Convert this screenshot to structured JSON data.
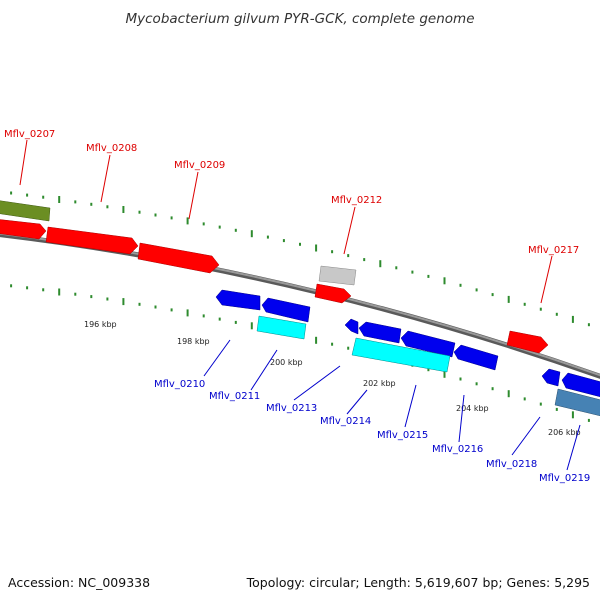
{
  "title": "Mycobacterium gilvum PYR-GCK, complete genome",
  "footer": {
    "accession": "Accession: NC_009338",
    "summary": "Topology: circular; Length: 5,619,607 bp; Genes: 5,295"
  },
  "colors": {
    "backbone": "#808080",
    "tick": "#2e8b2e",
    "red": "#ff0000",
    "blue": "#0000ee",
    "cyan": "#00ffff",
    "olive": "#6b8e23",
    "grey": "#c0c0c0",
    "steel": "#4682b4",
    "label_red": "#dd0000",
    "label_blue": "#0000cc"
  },
  "scale_labels": [
    "196 kbp",
    "198 kbp",
    "200 kbp",
    "202 kbp",
    "204 kbp",
    "206 kbp"
  ],
  "gene_labels": {
    "top": [
      "Mflv_0207",
      "Mflv_0208",
      "Mflv_0209",
      "Mflv_0212",
      "Mflv_0217"
    ],
    "bottom": [
      "Mflv_0210",
      "Mflv_0211",
      "Mflv_0213",
      "Mflv_0214",
      "Mflv_0215",
      "Mflv_0216",
      "Mflv_0218",
      "Mflv_0219"
    ]
  }
}
